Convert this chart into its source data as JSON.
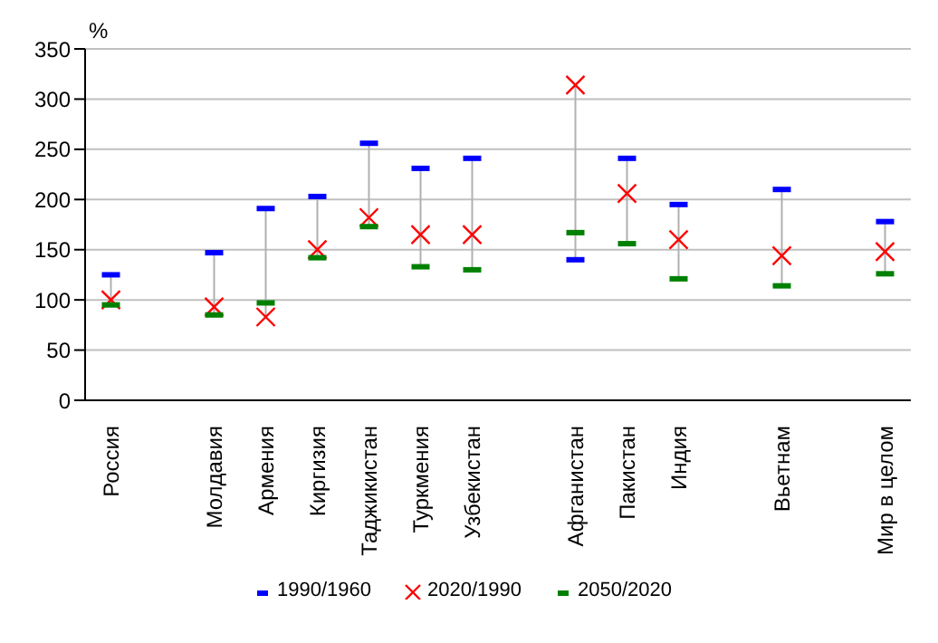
{
  "chart_data": {
    "type": "scatter",
    "ylabel": "%",
    "categories": [
      "Россия",
      null,
      "Молдавия",
      "Армения",
      "Киргизия",
      "Таджикистан",
      "Туркмения",
      "Узбекистан",
      null,
      "Афганистан",
      "Пакистан",
      "Индия",
      null,
      "Вьетнам",
      null,
      "Мир в целом"
    ],
    "series": [
      {
        "name": "1990/1960",
        "color": "#0000ff",
        "marker": "square",
        "values": [
          125,
          null,
          147,
          191,
          203,
          256,
          231,
          241,
          null,
          140,
          241,
          195,
          null,
          210,
          null,
          178
        ]
      },
      {
        "name": "2020/1990",
        "color": "#ff0000",
        "marker": "cross",
        "values": [
          100,
          null,
          93,
          83,
          150,
          182,
          165,
          165,
          null,
          314,
          206,
          160,
          null,
          144,
          null,
          148
        ]
      },
      {
        "name": "2050/2020",
        "color": "#008000",
        "marker": "square",
        "values": [
          95,
          null,
          85,
          97,
          142,
          173,
          133,
          130,
          null,
          167,
          156,
          121,
          null,
          114,
          null,
          126
        ]
      }
    ],
    "ylim": [
      0,
      350
    ],
    "yticks": [
      0,
      50,
      100,
      150,
      200,
      250,
      300,
      350
    ],
    "grid": "y",
    "legend": "bottom"
  }
}
